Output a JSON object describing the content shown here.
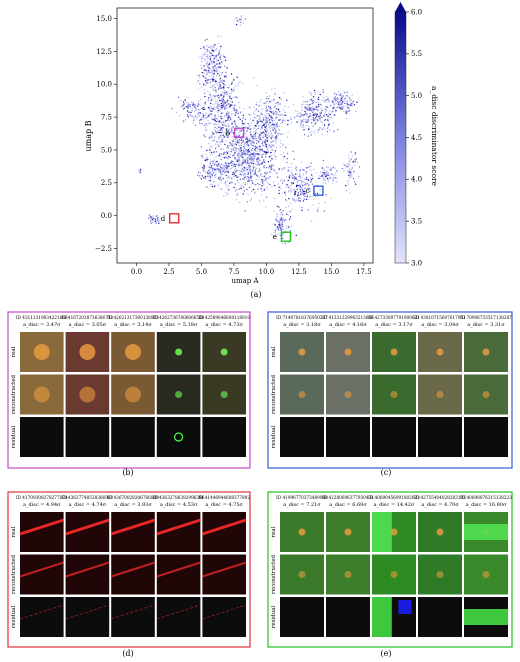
{
  "chart_data": {
    "type": "scatter",
    "xlabel": "umap A",
    "ylabel": "umap B",
    "xlim": [
      -1.5,
      18.2
    ],
    "ylim": [
      -3.6,
      15.8
    ],
    "x_ticks": [
      0.0,
      2.5,
      5.0,
      7.5,
      10.0,
      12.5,
      15.0,
      17.5
    ],
    "x_tick_labels": [
      "0.0",
      "2.5",
      "5.0",
      "7.5",
      "10.0",
      "12.5",
      "15.0",
      "17.5"
    ],
    "y_ticks": [
      -2.5,
      0.0,
      2.5,
      5.0,
      7.5,
      10.0,
      12.5,
      15.0
    ],
    "y_tick_labels": [
      "−2.5",
      "0.0",
      "2.5",
      "5.0",
      "7.5",
      "10.0",
      "12.5",
      "15.0"
    ],
    "grid": false,
    "colorbar": {
      "label": "a_disc discriminator score",
      "min": 3.0,
      "max": 6.0,
      "ticks": [
        3.0,
        3.5,
        4.0,
        4.5,
        5.0,
        5.5,
        6.0
      ],
      "tick_labels": [
        "3.0",
        "3.5",
        "4.0",
        "4.5",
        "5.0",
        "5.5",
        "6.0"
      ],
      "low_color": "#e2e4fb",
      "high_color": "#0a0a8c"
    },
    "regions": [
      {
        "label": "b",
        "x": 7.9,
        "y": 6.3,
        "color": "#c44dc8"
      },
      {
        "label": "c",
        "x": 14.0,
        "y": 1.9,
        "color": "#2f5fd8"
      },
      {
        "label": "d",
        "x": 2.9,
        "y": -0.2,
        "color": "#e0323c"
      },
      {
        "label": "e",
        "x": 11.5,
        "y": -1.6,
        "color": "#22c022"
      }
    ]
  },
  "captions": {
    "a": "(a)",
    "b": "(b)",
    "c": "(c)",
    "d": "(d)",
    "e": "(e)",
    "row_real": "real",
    "row_reconstructed": "reconstructed",
    "row_residual": "residual"
  },
  "panels": {
    "b": {
      "border_color": "#c44dc8",
      "ids": [
        "ID 43111319034221666",
        "ID 41672038736386713",
        "ID 42621317300138915",
        "ID 42627367806066558",
        "ID 42589646608118010"
      ],
      "scores": [
        "3.47σ",
        "3.05σ",
        "3.14σ",
        "5.18σ",
        "4.73σ"
      ],
      "real_colors": [
        "#8a6a3a",
        "#6a3a30",
        "#7a5a32",
        "#2a2a20",
        "#3a3a24"
      ]
    },
    "c": {
      "border_color": "#2f5fd8",
      "ids": [
        "ID 71407818376950207",
        "ID 41331229963213866",
        "ID 42733097791900621",
        "ID 43810715607617951",
        "ID 70906733517138287"
      ],
      "scores": [
        "3.18σ",
        "4.16σ",
        "3.17σ",
        "3.04σ",
        "3.31σ"
      ],
      "real_colors": [
        "#5a6a5a",
        "#6a7066",
        "#3a6a2e",
        "#6a6a48",
        "#4a6a3a"
      ]
    },
    "d": {
      "border_color": "#e0323c",
      "ids": [
        "ID 41709308278277074",
        "ID 43637748538366983",
        "ID 43670028306766889",
        "ID 43632786382996396",
        "ID 41446944608377892"
      ],
      "scores": [
        "4.94σ",
        "4.74σ",
        "3.93σ",
        "4.53σ",
        "4.75σ"
      ],
      "real_colors": [
        "#200606",
        "#200606",
        "#200606",
        "#200606",
        "#200606"
      ]
    },
    "e": {
      "border_color": "#22c022",
      "ids": [
        "ID 41996770373489980",
        "ID 42280696377930474",
        "ID 40690456991802623",
        "ID 42755404028283195",
        "ID 40698076315138223"
      ],
      "scores": [
        "7.21σ",
        "6.69σ",
        "14.42σ",
        "6.70σ",
        "16.80σ"
      ],
      "real_colors": [
        "#3a7a2a",
        "#3c7e2c",
        "#2e8a22",
        "#2e7a26",
        "#3a8a2c"
      ]
    },
    "score_prefix": "a_disc ="
  }
}
